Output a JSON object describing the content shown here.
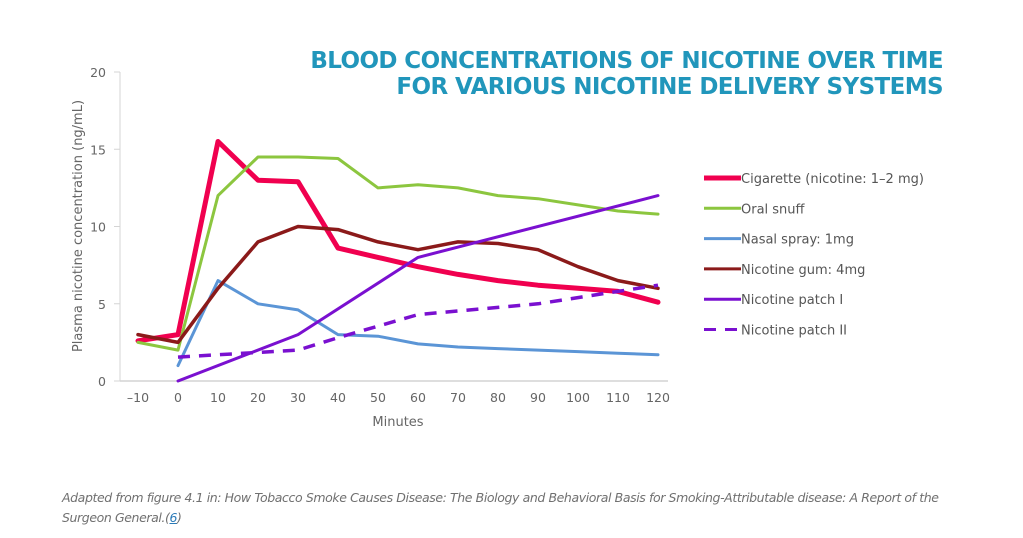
{
  "chart_data": {
    "type": "line",
    "title": [
      "BLOOD CONCENTRATIONS OF NICOTINE OVER TIME",
      "FOR VARIOUS NICOTINE DELIVERY SYSTEMS"
    ],
    "xlabel": "Minutes",
    "ylabel": "Plasma nicotine concentration (ng/mL)",
    "xlim": [
      -10,
      120
    ],
    "ylim": [
      0,
      20
    ],
    "x_ticks": [
      -10,
      0,
      10,
      20,
      30,
      40,
      50,
      60,
      70,
      80,
      90,
      100,
      110,
      120
    ],
    "y_ticks": [
      0,
      5,
      10,
      15,
      20
    ],
    "grid": false,
    "legend_position": "right",
    "series": [
      {
        "name": "Cigarette (nicotine: 1–2 mg)",
        "color": "#f0004f",
        "style": "solid",
        "x": [
          -10,
          0,
          10,
          20,
          30,
          40,
          50,
          60,
          70,
          80,
          90,
          100,
          110,
          120
        ],
        "y": [
          2.6,
          3.0,
          15.5,
          13.0,
          12.9,
          8.6,
          8.0,
          7.4,
          6.9,
          6.5,
          6.2,
          6.0,
          5.8,
          5.1
        ]
      },
      {
        "name": "Oral snuff",
        "color": "#8cc63f",
        "style": "solid",
        "x": [
          -10,
          0,
          10,
          20,
          30,
          40,
          50,
          60,
          70,
          80,
          90,
          100,
          110,
          120
        ],
        "y": [
          2.5,
          2.0,
          12.0,
          14.5,
          14.5,
          14.4,
          12.5,
          12.7,
          12.5,
          12.0,
          11.8,
          11.4,
          11.0,
          10.8
        ]
      },
      {
        "name": "Nasal spray: 1mg",
        "color": "#5b95d6",
        "style": "solid",
        "x": [
          0,
          10,
          20,
          30,
          40,
          50,
          60,
          70,
          80,
          90,
          100,
          110,
          120
        ],
        "y": [
          1.0,
          6.5,
          5.0,
          4.6,
          3.0,
          2.9,
          2.4,
          2.2,
          2.1,
          2.0,
          1.9,
          1.8,
          1.7
        ]
      },
      {
        "name": "Nicotine gum: 4mg",
        "color": "#8b1a1a",
        "style": "solid",
        "x": [
          -10,
          0,
          10,
          20,
          30,
          40,
          50,
          60,
          70,
          80,
          90,
          100,
          110,
          120
        ],
        "y": [
          3.0,
          2.5,
          6.0,
          9.0,
          10.0,
          9.8,
          9.0,
          8.5,
          9.0,
          8.9,
          8.5,
          7.4,
          6.5,
          6.0
        ]
      },
      {
        "name": "Nicotine patch I",
        "color": "#7a10d0",
        "style": "solid",
        "x": [
          0,
          30,
          60,
          120
        ],
        "y": [
          0.0,
          3.0,
          8.0,
          12.0
        ]
      },
      {
        "name": "Nicotine patch II",
        "color": "#7a10d0",
        "style": "dashed",
        "x": [
          0,
          30,
          40,
          60,
          90,
          120
        ],
        "y": [
          1.55,
          2.0,
          2.8,
          4.3,
          5.0,
          6.2
        ]
      }
    ]
  },
  "caption": {
    "text": "Adapted from figure 4.1 in: How Tobacco Smoke Causes Disease: The Biology and Behavioral Basis for Smoking-Attributable disease: A Report of the Surgeon General.",
    "ref_open": "(",
    "ref_link": "6",
    "ref_close": ")"
  }
}
